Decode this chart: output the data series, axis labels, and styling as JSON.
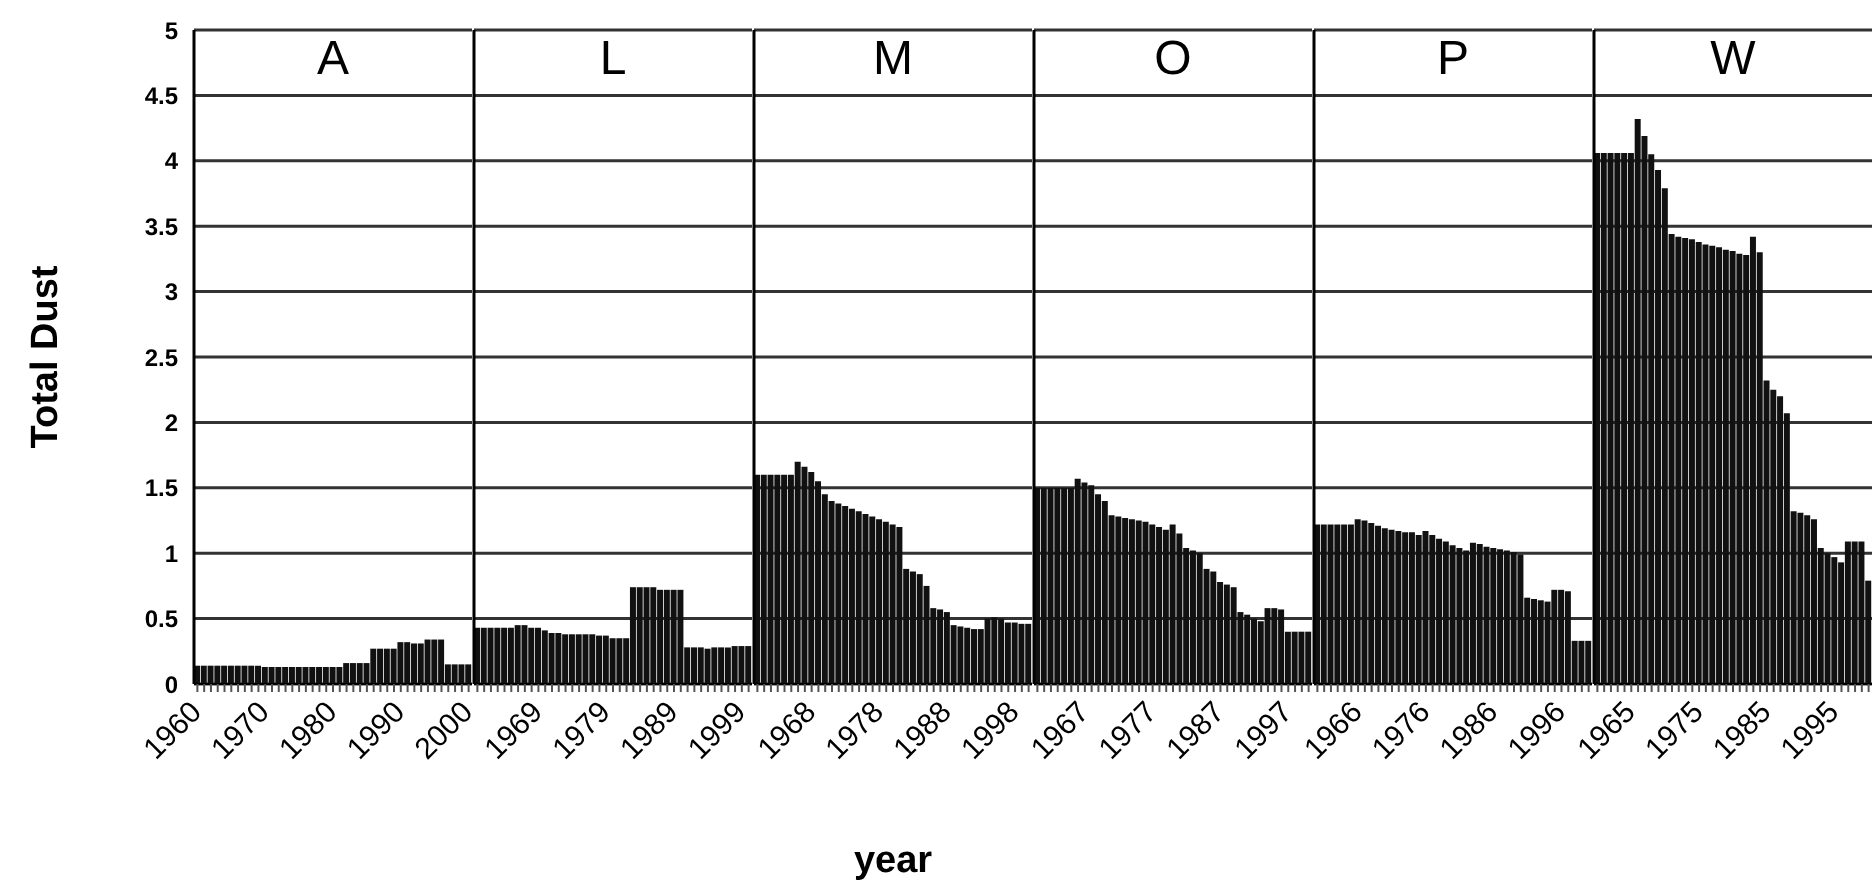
{
  "chart_data": [
    {
      "type": "bar",
      "title": "A",
      "ylabel": "Total Dust",
      "color": "#111111",
      "grid": true,
      "ylim": [
        0,
        5
      ],
      "yticks": [
        0,
        0.5,
        1,
        1.5,
        2,
        2.5,
        3,
        3.5,
        4,
        4.5,
        5
      ],
      "categories": [
        "1960",
        null,
        null,
        null,
        null,
        null,
        null,
        null,
        null,
        null,
        "1970",
        null,
        null,
        null,
        null,
        null,
        null,
        null,
        null,
        null,
        "1980",
        null,
        null,
        null,
        null,
        null,
        null,
        null,
        null,
        null,
        "1990",
        null,
        null,
        null,
        null,
        null,
        null,
        null,
        null,
        null,
        "2000"
      ],
      "values": [
        0.14,
        0.14,
        0.14,
        0.14,
        0.14,
        0.14,
        0.14,
        0.14,
        0.14,
        0.14,
        0.13,
        0.13,
        0.13,
        0.13,
        0.13,
        0.13,
        0.13,
        0.13,
        0.13,
        0.13,
        0.13,
        0.13,
        0.16,
        0.16,
        0.16,
        0.16,
        0.27,
        0.27,
        0.27,
        0.27,
        0.32,
        0.32,
        0.31,
        0.31,
        0.34,
        0.34,
        0.34,
        0.15,
        0.15,
        0.15,
        0.15
      ]
    },
    {
      "type": "bar",
      "title": "L",
      "color": "#111111",
      "grid": true,
      "ylim": [
        0,
        5
      ],
      "yticks": [
        0,
        0.5,
        1,
        1.5,
        2,
        2.5,
        3,
        3.5,
        4,
        4.5,
        5
      ],
      "tick_labels": "x",
      "categories": [
        null,
        null,
        null,
        null,
        null,
        null,
        null,
        null,
        null,
        "1969",
        null,
        null,
        null,
        null,
        null,
        null,
        null,
        null,
        null,
        "1979",
        null,
        null,
        null,
        null,
        null,
        null,
        null,
        null,
        null,
        "1989",
        null,
        null,
        null,
        null,
        null,
        null,
        null,
        null,
        null,
        "1999",
        null
      ],
      "values": [
        0.43,
        0.43,
        0.43,
        0.43,
        0.43,
        0.43,
        0.45,
        0.45,
        0.43,
        0.43,
        0.41,
        0.39,
        0.39,
        0.38,
        0.38,
        0.38,
        0.38,
        0.38,
        0.37,
        0.37,
        0.35,
        0.35,
        0.35,
        0.74,
        0.74,
        0.74,
        0.74,
        0.72,
        0.72,
        0.72,
        0.72,
        0.28,
        0.28,
        0.28,
        0.27,
        0.28,
        0.28,
        0.28,
        0.29,
        0.29,
        0.29
      ]
    },
    {
      "type": "bar",
      "title": "M",
      "xlabel": "year",
      "color": "#111111",
      "grid": true,
      "ylim": [
        0,
        5
      ],
      "yticks": [
        0,
        0.5,
        1,
        1.5,
        2,
        2.5,
        3,
        3.5,
        4,
        4.5,
        5
      ],
      "tick_labels": "x",
      "categories": [
        null,
        null,
        null,
        null,
        null,
        null,
        null,
        null,
        "1968",
        null,
        null,
        null,
        null,
        null,
        null,
        null,
        null,
        null,
        "1978",
        null,
        null,
        null,
        null,
        null,
        null,
        null,
        null,
        null,
        "1988",
        null,
        null,
        null,
        null,
        null,
        null,
        null,
        null,
        null,
        "1998",
        null,
        null
      ],
      "values": [
        1.6,
        1.6,
        1.6,
        1.6,
        1.6,
        1.6,
        1.7,
        1.66,
        1.62,
        1.55,
        1.45,
        1.4,
        1.38,
        1.36,
        1.34,
        1.32,
        1.3,
        1.28,
        1.26,
        1.24,
        1.22,
        1.2,
        0.88,
        0.86,
        0.84,
        0.75,
        0.58,
        0.57,
        0.55,
        0.45,
        0.44,
        0.43,
        0.42,
        0.42,
        0.5,
        0.51,
        0.5,
        0.47,
        0.47,
        0.46,
        0.46
      ]
    },
    {
      "type": "bar",
      "title": "O",
      "color": "#111111",
      "grid": true,
      "ylim": [
        0,
        5
      ],
      "yticks": [
        0,
        0.5,
        1,
        1.5,
        2,
        2.5,
        3,
        3.5,
        4,
        4.5,
        5
      ],
      "tick_labels": "x",
      "categories": [
        null,
        null,
        null,
        null,
        null,
        null,
        null,
        "1967",
        null,
        null,
        null,
        null,
        null,
        null,
        null,
        null,
        null,
        "1977",
        null,
        null,
        null,
        null,
        null,
        null,
        null,
        null,
        null,
        "1987",
        null,
        null,
        null,
        null,
        null,
        null,
        null,
        null,
        null,
        "1997",
        null,
        null,
        null
      ],
      "values": [
        1.5,
        1.5,
        1.5,
        1.5,
        1.5,
        1.5,
        1.57,
        1.54,
        1.52,
        1.45,
        1.4,
        1.29,
        1.28,
        1.27,
        1.26,
        1.25,
        1.24,
        1.22,
        1.2,
        1.18,
        1.22,
        1.15,
        1.04,
        1.02,
        1.0,
        0.88,
        0.86,
        0.78,
        0.76,
        0.74,
        0.55,
        0.53,
        0.5,
        0.48,
        0.58,
        0.58,
        0.57,
        0.4,
        0.4,
        0.4,
        0.4
      ]
    },
    {
      "type": "bar",
      "title": "P",
      "color": "#111111",
      "grid": true,
      "ylim": [
        0,
        5
      ],
      "yticks": [
        0,
        0.5,
        1,
        1.5,
        2,
        2.5,
        3,
        3.5,
        4,
        4.5,
        5
      ],
      "tick_labels": "x",
      "categories": [
        null,
        null,
        null,
        null,
        null,
        null,
        "1966",
        null,
        null,
        null,
        null,
        null,
        null,
        null,
        null,
        null,
        "1976",
        null,
        null,
        null,
        null,
        null,
        null,
        null,
        null,
        null,
        "1986",
        null,
        null,
        null,
        null,
        null,
        null,
        null,
        null,
        null,
        "1996",
        null,
        null,
        null,
        null
      ],
      "values": [
        1.22,
        1.22,
        1.22,
        1.22,
        1.22,
        1.22,
        1.26,
        1.25,
        1.23,
        1.21,
        1.19,
        1.18,
        1.17,
        1.16,
        1.16,
        1.14,
        1.17,
        1.14,
        1.11,
        1.09,
        1.06,
        1.04,
        1.02,
        1.08,
        1.07,
        1.05,
        1.04,
        1.03,
        1.02,
        1.01,
        0.99,
        0.66,
        0.65,
        0.64,
        0.63,
        0.72,
        0.72,
        0.71,
        0.33,
        0.33,
        0.33
      ]
    },
    {
      "type": "bar",
      "title": "W",
      "color": "#111111",
      "grid": true,
      "ylim": [
        0,
        5
      ],
      "yticks": [
        0,
        0.5,
        1,
        1.5,
        2,
        2.5,
        3,
        3.5,
        4,
        4.5,
        5
      ],
      "tick_labels": "x",
      "categories": [
        null,
        null,
        null,
        null,
        null,
        "1965",
        null,
        null,
        null,
        null,
        null,
        null,
        null,
        null,
        null,
        "1975",
        null,
        null,
        null,
        null,
        null,
        null,
        null,
        null,
        null,
        "1985",
        null,
        null,
        null,
        null,
        null,
        null,
        null,
        null,
        null,
        "1995",
        null,
        null,
        null,
        null,
        null
      ],
      "values": [
        4.06,
        4.06,
        4.06,
        4.06,
        4.06,
        4.06,
        4.32,
        4.19,
        4.05,
        3.93,
        3.79,
        3.44,
        3.42,
        3.41,
        3.4,
        3.38,
        3.36,
        3.35,
        3.34,
        3.32,
        3.31,
        3.29,
        3.28,
        3.42,
        3.3,
        2.32,
        2.25,
        2.2,
        2.07,
        1.32,
        1.31,
        1.29,
        1.26,
        1.04,
        1.0,
        0.97,
        0.93,
        1.09,
        1.09,
        1.09,
        0.79
      ]
    }
  ]
}
